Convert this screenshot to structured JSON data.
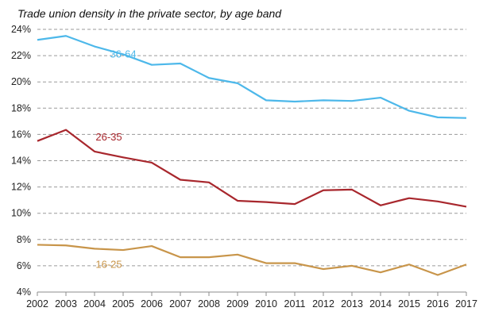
{
  "chart_data": {
    "type": "line",
    "title": "Trade union density in the private sector, by age band",
    "xlabel": "",
    "ylabel": "",
    "x": [
      "2002",
      "2003",
      "2004",
      "2005",
      "2006",
      "2007",
      "2008",
      "2009",
      "2010",
      "2011",
      "2012",
      "2013",
      "2014",
      "2015",
      "2016",
      "2017"
    ],
    "ylim": [
      4,
      24
    ],
    "yticks": [
      "4%",
      "6%",
      "8%",
      "10%",
      "12%",
      "14%",
      "16%",
      "18%",
      "20%",
      "22%",
      "24%"
    ],
    "grid": "horizontal dashed",
    "legend": "none (inline series labels)",
    "series": [
      {
        "name": "36-64",
        "color": "#4db8ea",
        "values": [
          23.2,
          23.5,
          22.7,
          22.1,
          21.3,
          21.4,
          20.3,
          19.9,
          18.6,
          18.5,
          18.6,
          18.55,
          18.8,
          17.8,
          17.3,
          17.25
        ]
      },
      {
        "name": "26-35",
        "color": "#a8272d",
        "values": [
          15.5,
          16.35,
          14.7,
          14.25,
          13.85,
          12.55,
          12.35,
          10.95,
          10.85,
          10.7,
          11.75,
          11.8,
          10.6,
          11.15,
          10.9,
          10.5
        ]
      },
      {
        "name": "16-25",
        "color": "#c8954a",
        "values": [
          7.6,
          7.55,
          7.3,
          7.2,
          7.5,
          6.65,
          6.65,
          6.85,
          6.2,
          6.2,
          5.75,
          6.0,
          5.5,
          6.1,
          5.3,
          6.1
        ]
      }
    ]
  }
}
